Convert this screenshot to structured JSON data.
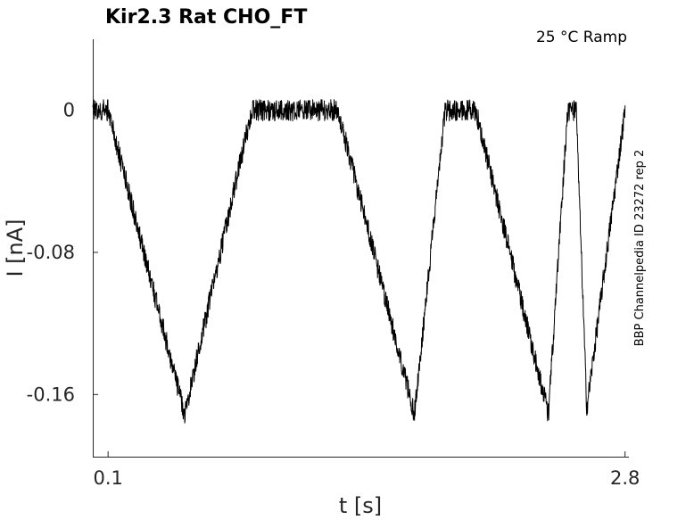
{
  "chart_data": {
    "type": "line",
    "title": "Kir2.3  Rat  CHO_FT",
    "condition": "25 °C  Ramp",
    "side_label": "BBP Channelpedia ID 23272 rep 2",
    "xlabel": "t [s]",
    "ylabel": "I [nA]",
    "xlim": [
      0.02,
      2.82
    ],
    "ylim": [
      -0.195,
      0.04
    ],
    "x_ticks": [
      0.1,
      2.8
    ],
    "x_tick_labels": [
      "0.1",
      "2.8"
    ],
    "y_ticks": [
      0,
      -0.08,
      -0.16
    ],
    "y_tick_labels": [
      "0",
      "-0.08",
      "-0.16"
    ],
    "grid": false,
    "series": [
      {
        "color": "#000000",
        "noise_amplitude": 0.006,
        "x": [
          0.02,
          0.1,
          0.5,
          0.85,
          1.3,
          1.7,
          1.86,
          2.02,
          2.4,
          2.5,
          2.545,
          2.6,
          2.8
        ],
        "y": [
          0,
          0,
          -0.171,
          0,
          0,
          -0.171,
          0,
          0,
          -0.171,
          0,
          0,
          -0.168,
          0
        ]
      }
    ]
  }
}
